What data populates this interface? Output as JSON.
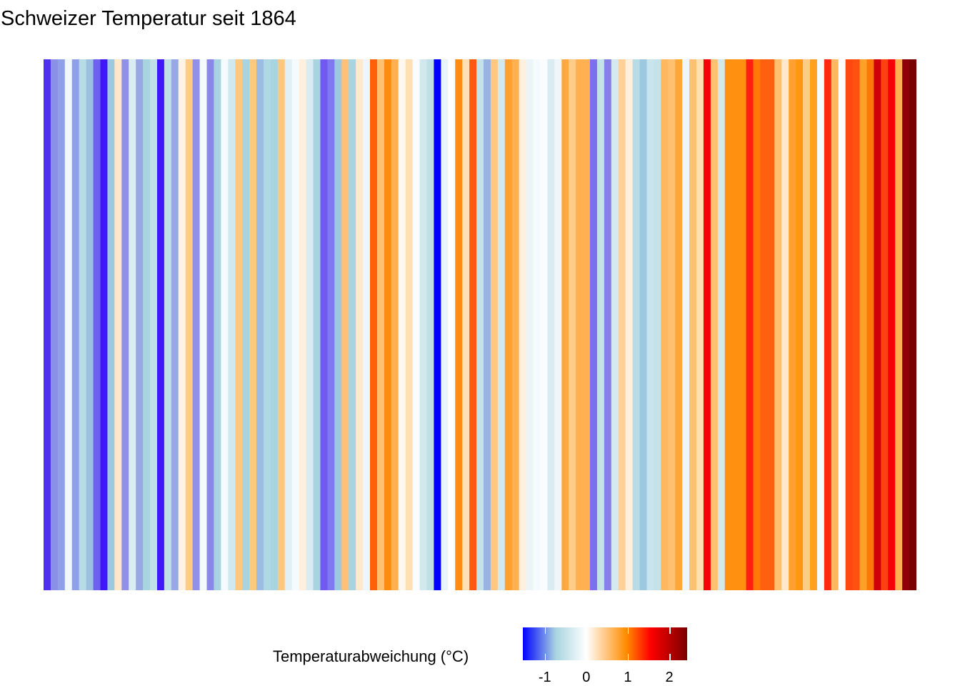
{
  "chart_data": {
    "type": "heatmap",
    "title": "Schweizer Temperatur seit 1864",
    "legend": {
      "title": "Temperaturabweichung (°C)",
      "position": "bottom",
      "ticks": [
        -1,
        0,
        1,
        2
      ],
      "tick_labels": [
        "-1",
        "0",
        "1",
        "2"
      ],
      "range": [
        -1.53,
        2.43
      ]
    },
    "stripe_colors": [
      "#5030f0",
      "#8a90e8",
      "#90a0e8",
      "#f0f8fa",
      "#90a0e8",
      "#b8dce6",
      "#9cc0e0",
      "#7060f0",
      "#4018f8",
      "#9cc8e0",
      "#ffe8c8",
      "#9090e8",
      "#d8ecf2",
      "#98a8e4",
      "#a8d4e0",
      "#c0e0e8",
      "#4018f8",
      "#c0e0e8",
      "#98a8e4",
      "#fff3e4",
      "#ffcc88",
      "#9090e8",
      "#f5fbfc",
      "#8a88e8",
      "#a8d4e0",
      "#f5fbfc",
      "#d0e8f0",
      "#ffc880",
      "#a8d4e0",
      "#ffc880",
      "#9cbce4",
      "#b0d8e4",
      "#a8d4e0",
      "#ffc880",
      "#e0f0f6",
      "#f5fbfc",
      "#ffefdc",
      "#d8ecf2",
      "#a8d4e0",
      "#7058f0",
      "#8078f0",
      "#9cc8e0",
      "#ffc078",
      "#a8d4e0",
      "#ffe8cc",
      "#eef6fa",
      "#ff6008",
      "#ffc070",
      "#ff8c10",
      "#ffb050",
      "#fff8ee",
      "#ffe0b4",
      "#fafcff",
      "#d0e8ee",
      "#c0e0e8",
      "#0000ff",
      "#e8f4f8",
      "#ffffff",
      "#ff8c10",
      "#ffe0b4",
      "#ff5810",
      "#c4e2ea",
      "#98b4e4",
      "#ffc880",
      "#d0e8ee",
      "#ffa030",
      "#ffb050",
      "#ffefdc",
      "#ebf5f8",
      "#f5fbfc",
      "#fafcff",
      "#d8ecf2",
      "#eef6fa",
      "#ffa840",
      "#ffcc88",
      "#ffb050",
      "#ffb050",
      "#7c70f0",
      "#c4e2ea",
      "#8880e8",
      "#d4eaf0",
      "#ffd098",
      "#ffefdc",
      "#b8dce6",
      "#9cc8e0",
      "#c8e4ec",
      "#c4e2ea",
      "#ffb860",
      "#ffc070",
      "#ffa838",
      "#eef6fa",
      "#ffc070",
      "#ffe0b0",
      "#f80008",
      "#ffc070",
      "#d0e8ee",
      "#ff9010",
      "#ff9010",
      "#ff9010",
      "#ff2010",
      "#ff7808",
      "#ff6010",
      "#ff6010",
      "#ffc070",
      "#ffe8cc",
      "#ffa030",
      "#ff9810",
      "#ffcc88",
      "#ffa020",
      "#f5fbfc",
      "#ff2810",
      "#ffb860",
      "#ffffff",
      "#ff4810",
      "#ff5010",
      "#ffa028",
      "#ff7808",
      "#d00008",
      "#ff4010",
      "#f80008",
      "#ffb050",
      "#900008",
      "#780000"
    ],
    "values": [
      -1.2,
      -0.95,
      -0.9,
      -0.05,
      -0.9,
      -0.5,
      -0.7,
      -1.05,
      -1.3,
      -0.65,
      0.2,
      -0.95,
      -0.25,
      -0.85,
      -0.55,
      -0.4,
      -1.3,
      -0.4,
      -0.85,
      0.1,
      0.45,
      -0.95,
      -0.03,
      -1.0,
      -0.55,
      -0.03,
      -0.3,
      0.5,
      -0.55,
      0.5,
      -0.75,
      -0.5,
      -0.55,
      0.5,
      -0.15,
      -0.03,
      0.12,
      -0.25,
      -0.55,
      -1.1,
      -1.0,
      -0.65,
      0.5,
      -0.55,
      0.2,
      -0.07,
      1.45,
      0.55,
      1.0,
      0.7,
      0.05,
      0.3,
      -0.01,
      -0.3,
      -0.4,
      -1.5,
      -0.1,
      0.0,
      1.0,
      0.3,
      1.5,
      -0.38,
      -0.8,
      0.45,
      -0.3,
      0.85,
      0.7,
      0.12,
      -0.08,
      -0.03,
      -0.01,
      -0.25,
      -0.07,
      0.78,
      0.42,
      0.7,
      0.7,
      -1.05,
      -0.38,
      -1.0,
      -0.28,
      0.38,
      0.12,
      -0.5,
      -0.65,
      -0.35,
      -0.38,
      0.62,
      0.55,
      0.8,
      -0.07,
      0.55,
      0.3,
      1.95,
      0.55,
      -0.3,
      0.98,
      0.98,
      0.98,
      1.8,
      1.2,
      1.4,
      1.4,
      0.55,
      0.2,
      0.85,
      0.95,
      0.42,
      0.9,
      -0.03,
      1.75,
      0.62,
      0.0,
      1.6,
      1.55,
      0.88,
      1.2,
      2.15,
      1.65,
      1.95,
      0.7,
      2.35,
      2.45
    ]
  }
}
